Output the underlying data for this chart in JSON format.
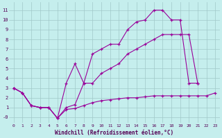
{
  "xlabel": "Windchill (Refroidissement éolien,°C)",
  "background_color": "#c5eeed",
  "grid_color": "#a0c8c8",
  "line_color": "#990099",
  "x_ticks": [
    0,
    1,
    2,
    3,
    4,
    5,
    6,
    7,
    8,
    9,
    10,
    11,
    12,
    13,
    14,
    15,
    16,
    17,
    18,
    19,
    20,
    21,
    22,
    23
  ],
  "y_ticks": [
    0,
    1,
    2,
    3,
    4,
    5,
    6,
    7,
    8,
    9,
    10,
    11
  ],
  "y_tick_labels": [
    "-0",
    "1",
    "2",
    "3",
    "4",
    "5",
    "6",
    "7",
    "8",
    "9",
    "10",
    "11"
  ],
  "ylim": [
    -0.6,
    11.8
  ],
  "xlim": [
    -0.5,
    23.5
  ],
  "line_bottom_x": [
    0,
    1,
    2,
    3,
    4,
    5,
    6,
    7,
    8,
    9,
    10,
    11,
    12,
    13,
    14,
    15,
    16,
    17,
    18,
    19,
    20,
    21,
    22,
    23
  ],
  "line_bottom_y": [
    3.0,
    2.5,
    1.2,
    1.0,
    1.0,
    -0.1,
    0.8,
    0.9,
    1.2,
    1.5,
    1.7,
    1.8,
    1.9,
    2.0,
    2.0,
    2.1,
    2.2,
    2.2,
    2.2,
    2.2,
    2.2,
    2.2,
    2.2,
    2.5
  ],
  "line_top_x": [
    0,
    1,
    2,
    3,
    4,
    5,
    6,
    7,
    8,
    9,
    10,
    11,
    12,
    13,
    14,
    15,
    16,
    17,
    18,
    19,
    20,
    21
  ],
  "line_top_y": [
    3.0,
    2.5,
    1.2,
    1.0,
    1.0,
    -0.1,
    3.5,
    5.5,
    3.5,
    6.5,
    7.0,
    7.5,
    7.5,
    9.0,
    9.8,
    10.0,
    11.0,
    11.0,
    10.0,
    10.0,
    3.5,
    3.5
  ],
  "line_mid_x": [
    0,
    1,
    2,
    3,
    4,
    5,
    6,
    7,
    8,
    9,
    10,
    11,
    12,
    13,
    14,
    15,
    16,
    17,
    18,
    19,
    20,
    21
  ],
  "line_mid_y": [
    3.0,
    2.5,
    1.2,
    1.0,
    1.0,
    -0.1,
    1.0,
    1.3,
    3.5,
    3.5,
    4.5,
    5.0,
    5.5,
    6.5,
    7.0,
    7.5,
    8.0,
    8.5,
    8.5,
    8.5,
    8.5,
    3.5
  ]
}
